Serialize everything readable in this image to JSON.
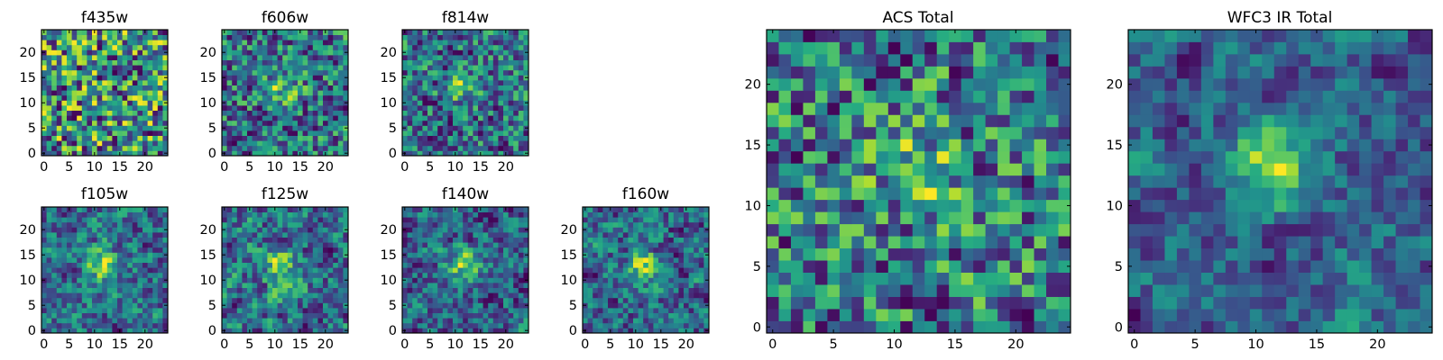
{
  "figure": {
    "description_none": ""
  },
  "chart_data": [
    {
      "type": "heatmap",
      "title": "f435w",
      "x_ticks": [
        0,
        5,
        10,
        15,
        20
      ],
      "y_ticks": [
        0,
        5,
        10,
        15,
        20
      ],
      "xlim": [
        -0.5,
        24.5
      ],
      "ylim": [
        -0.5,
        24.5
      ],
      "colormap": "viridis",
      "grid_size": 25,
      "structure": "noise",
      "seed": 11
    },
    {
      "type": "heatmap",
      "title": "f606w",
      "x_ticks": [
        0,
        5,
        10,
        15,
        20
      ],
      "y_ticks": [
        0,
        5,
        10,
        15,
        20
      ],
      "xlim": [
        -0.5,
        24.5
      ],
      "ylim": [
        -0.5,
        24.5
      ],
      "colormap": "viridis",
      "grid_size": 25,
      "structure": "faint-center",
      "seed": 22
    },
    {
      "type": "heatmap",
      "title": "f814w",
      "x_ticks": [
        0,
        5,
        10,
        15,
        20
      ],
      "y_ticks": [
        0,
        5,
        10,
        15,
        20
      ],
      "xlim": [
        -0.5,
        24.5
      ],
      "ylim": [
        -0.5,
        24.5
      ],
      "colormap": "viridis",
      "grid_size": 25,
      "structure": "faint-center",
      "seed": 33
    },
    {
      "type": "heatmap",
      "title": "f105w",
      "x_ticks": [
        0,
        5,
        10,
        15,
        20
      ],
      "y_ticks": [
        0,
        5,
        10,
        15,
        20
      ],
      "xlim": [
        -0.5,
        24.5
      ],
      "ylim": [
        -0.5,
        24.5
      ],
      "colormap": "viridis",
      "grid_size": 25,
      "structure": "center-source",
      "seed": 44
    },
    {
      "type": "heatmap",
      "title": "f125w",
      "x_ticks": [
        0,
        5,
        10,
        15,
        20
      ],
      "y_ticks": [
        0,
        5,
        10,
        15,
        20
      ],
      "xlim": [
        -0.5,
        24.5
      ],
      "ylim": [
        -0.5,
        24.5
      ],
      "colormap": "viridis",
      "grid_size": 25,
      "structure": "center-source",
      "seed": 55
    },
    {
      "type": "heatmap",
      "title": "f140w",
      "x_ticks": [
        0,
        5,
        10,
        15,
        20
      ],
      "y_ticks": [
        0,
        5,
        10,
        15,
        20
      ],
      "xlim": [
        -0.5,
        24.5
      ],
      "ylim": [
        -0.5,
        24.5
      ],
      "colormap": "viridis",
      "grid_size": 25,
      "structure": "center-source",
      "seed": 66
    },
    {
      "type": "heatmap",
      "title": "f160w",
      "x_ticks": [
        0,
        5,
        10,
        15,
        20
      ],
      "y_ticks": [
        0,
        5,
        10,
        15,
        20
      ],
      "xlim": [
        -0.5,
        24.5
      ],
      "ylim": [
        -0.5,
        24.5
      ],
      "colormap": "viridis",
      "grid_size": 25,
      "structure": "center-source",
      "seed": 77
    },
    {
      "type": "heatmap",
      "title": "ACS Total",
      "x_ticks": [
        0,
        5,
        10,
        15,
        20
      ],
      "y_ticks": [
        0,
        5,
        10,
        15,
        20
      ],
      "xlim": [
        -0.5,
        24.5
      ],
      "ylim": [
        -0.5,
        24.5
      ],
      "colormap": "viridis",
      "grid_size": 25,
      "structure": "faint-center",
      "seed": 88
    },
    {
      "type": "heatmap",
      "title": "WFC3 IR Total",
      "x_ticks": [
        0,
        5,
        10,
        15,
        20
      ],
      "y_ticks": [
        0,
        5,
        10,
        15,
        20
      ],
      "xlim": [
        -0.5,
        24.5
      ],
      "ylim": [
        -0.5,
        24.5
      ],
      "colormap": "viridis",
      "grid_size": 25,
      "structure": "bright-center",
      "seed": 99
    }
  ]
}
